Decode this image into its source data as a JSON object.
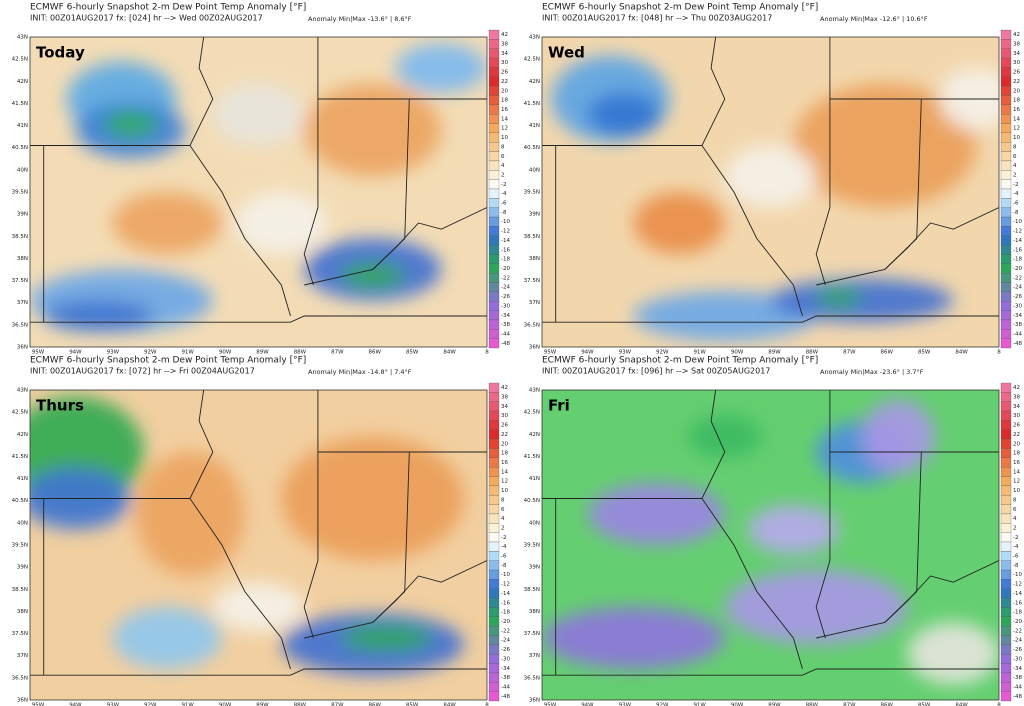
{
  "panels": [
    {
      "title": "ECMWF 6-hourly Snapshot 2-m Dew Point Temp Anomaly [°F]",
      "init": "INIT: 00Z01AUG2017 fx: [024] hr --> Wed 00Z02AUG2017",
      "anomaly": "Anomaly Min|Max -13.6° | 8.6°F",
      "label": "Today"
    },
    {
      "title": "ECMWF 6-hourly Snapshot 2-m Dew Point Temp Anomaly [°F]",
      "init": "INIT: 00Z01AUG2017 fx: [048] hr --> Thu 00Z03AUG2017",
      "anomaly": "Anomaly Min|Max -12.6° | 10.6°F",
      "label": "Wed"
    },
    {
      "title": "ECMWF 6-hourly Snapshot 2-m Dew Point Temp Anomaly [°F]",
      "init": "INIT: 00Z01AUG2017 fx: [072] hr --> Fri 00Z04AUG2017",
      "anomaly": "Anomaly Min|Max -14.8° | 7.4°F",
      "label": "Thurs"
    },
    {
      "title": "ECMWF 6-hourly Snapshot 2-m Dew Point Temp Anomaly [°F]",
      "init": "INIT: 00Z01AUG2017 fx: [096] hr --> Sat 00Z05AUG2017",
      "anomaly": "Anomaly Min|Max -23.6° | 3.7°F",
      "label": "Fri"
    }
  ],
  "lat_labels": [
    "43N",
    "42.5N",
    "42N",
    "41.5N",
    "41N",
    "40.5N",
    "40N",
    "39.5N",
    "39N",
    "38.5N",
    "38N",
    "37.5N",
    "37N",
    "36.5N",
    "36N"
  ],
  "lon_labels": [
    "95W",
    "94W",
    "93W",
    "92W",
    "91W",
    "90W",
    "89W",
    "88W",
    "87W",
    "86W",
    "85W",
    "84W",
    "8"
  ],
  "colorbar_labels": [
    "42",
    "38",
    "34",
    "30",
    "26",
    "22",
    "20",
    "18",
    "16",
    "14",
    "12",
    "10",
    "8",
    "6",
    "4",
    "2",
    "-2",
    "-4",
    "-6",
    "-8",
    "-10",
    "-12",
    "-14",
    "-16",
    "-18",
    "-20",
    "-22",
    "-24",
    "-26",
    "-30",
    "-34",
    "-38",
    "-44",
    "-48"
  ]
}
